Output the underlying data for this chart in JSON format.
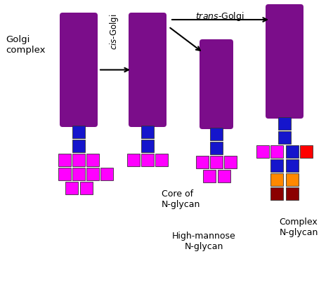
{
  "background_color": "#ffffff",
  "purple": "#7B0D8A",
  "blue": "#1515CC",
  "magenta": "#FF00FF",
  "orange": "#FF8800",
  "darkred": "#8B0000",
  "red": "#FF0000",
  "labels": {
    "golgi_complex": "Golgi\ncomplex",
    "cis_golgi": "cis",
    "cis_golgi2": "-Golgi",
    "trans_golgi": "trans-Golgi",
    "core": "Core of\nN-glycan",
    "high_mannose": "High-mannose\nN-glycan",
    "complex": "Complex\nN-glycan"
  }
}
